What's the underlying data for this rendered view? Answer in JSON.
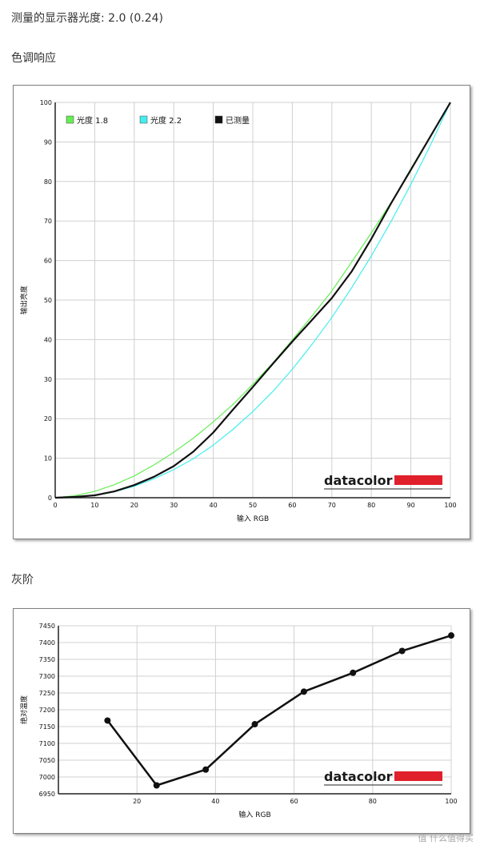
{
  "header": {
    "gamma_text": "测量的显示器光度: 2.0 (0.24)"
  },
  "sections": {
    "tone_response": "色调响应",
    "grayscale": "灰阶"
  },
  "brand": {
    "name": "datacolor",
    "bar_color": "#e0202a"
  },
  "footer": {
    "watermark": "值 什么值得买"
  },
  "chart_data": [
    {
      "type": "line",
      "xlabel": "输入 RGB",
      "ylabel": "输出亮度",
      "xlim": [
        0,
        100
      ],
      "ylim": [
        0,
        100
      ],
      "xticks": [
        0,
        10,
        20,
        30,
        40,
        50,
        60,
        70,
        80,
        90,
        100
      ],
      "yticks": [
        0,
        10,
        20,
        30,
        40,
        50,
        60,
        70,
        80,
        90,
        100
      ],
      "grid": true,
      "legend_position": "top-left",
      "series": [
        {
          "name": "光度 1.8",
          "color": "#66ee55",
          "x": [
            0,
            5,
            10,
            15,
            20,
            25,
            30,
            35,
            40,
            45,
            50,
            55,
            60,
            65,
            70,
            75,
            80,
            85,
            90,
            95,
            100
          ],
          "y": [
            0,
            0.5,
            1.6,
            3.3,
            5.5,
            8.3,
            11.5,
            15.1,
            19.2,
            23.6,
            28.7,
            34,
            39.9,
            46,
            52.3,
            59.6,
            67,
            74.7,
            82.7,
            91.3,
            100
          ]
        },
        {
          "name": "光度 2.2",
          "color": "#44eeee",
          "x": [
            0,
            5,
            10,
            15,
            20,
            25,
            30,
            35,
            40,
            45,
            50,
            55,
            60,
            65,
            70,
            75,
            80,
            85,
            90,
            95,
            100
          ],
          "y": [
            0,
            0.1,
            0.6,
            1.5,
            2.9,
            4.8,
            7.1,
            9.9,
            13.3,
            17.3,
            21.8,
            26.8,
            32.5,
            38.8,
            45.6,
            53.1,
            61.2,
            69.9,
            79.3,
            89.3,
            100
          ]
        },
        {
          "name": "已测量",
          "color": "#111111",
          "x": [
            0,
            5,
            10,
            15,
            20,
            25,
            30,
            35,
            40,
            45,
            50,
            55,
            60,
            65,
            70,
            75,
            80,
            85,
            90,
            95,
            100
          ],
          "y": [
            0,
            0.2,
            0.6,
            1.6,
            3.2,
            5.3,
            8,
            11.7,
            16.5,
            22.3,
            28,
            33.8,
            39.5,
            45,
            50.5,
            57.2,
            65.5,
            74.5,
            83,
            91.5,
            100
          ]
        }
      ]
    },
    {
      "type": "line",
      "xlabel": "输入 RGB",
      "ylabel": "绝对温度",
      "xlim": [
        0,
        100
      ],
      "ylim": [
        6950,
        7450
      ],
      "xticks": [
        20,
        40,
        60,
        80,
        100
      ],
      "yticks": [
        6950,
        7000,
        7050,
        7100,
        7150,
        7200,
        7250,
        7300,
        7350,
        7400,
        7450
      ],
      "grid": true,
      "series": [
        {
          "name": "",
          "color": "#111111",
          "x": [
            12.5,
            25,
            37.5,
            50,
            62.5,
            75,
            87.5,
            100
          ],
          "y": [
            7168,
            6975,
            7022,
            7157,
            7254,
            7310,
            7375,
            7421
          ]
        }
      ]
    }
  ]
}
